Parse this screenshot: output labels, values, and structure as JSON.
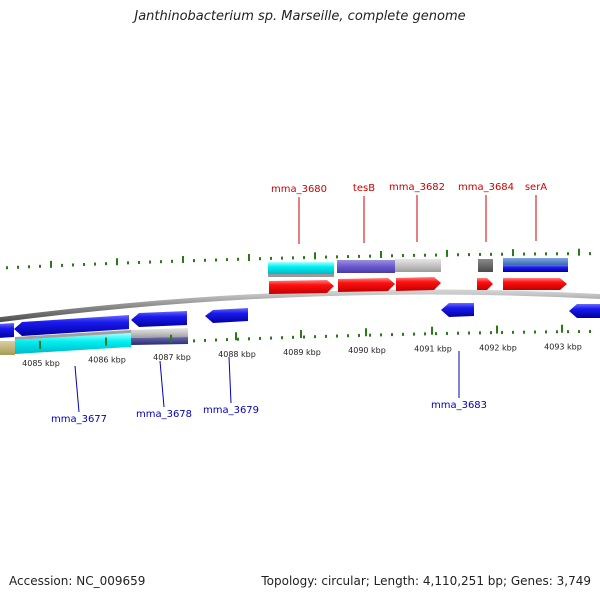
{
  "title": "Janthinobacterium sp. Marseille, complete genome",
  "footer": {
    "accession": "Accession: NC_009659",
    "summary": "Topology: circular; Length: 4,110,251 bp; Genes: 3,749"
  },
  "colors": {
    "forward_label": "#cc0000",
    "reverse_label": "#0000bb",
    "tick": "#2a7a1a",
    "backbone": "#8a8a8a"
  },
  "ticks": [
    {
      "label": "4085 kbp"
    },
    {
      "label": "4086 kbp"
    },
    {
      "label": "4087 kbp"
    },
    {
      "label": "4088 kbp"
    },
    {
      "label": "4089 kbp"
    },
    {
      "label": "4090 kbp"
    },
    {
      "label": "4091 kbp"
    },
    {
      "label": "4092 kbp"
    },
    {
      "label": "4093 kbp"
    }
  ],
  "forward_genes": [
    {
      "name": "mma_3680"
    },
    {
      "name": "tesB"
    },
    {
      "name": "mma_3682"
    },
    {
      "name": "mma_3684"
    },
    {
      "name": "serA"
    }
  ],
  "reverse_genes": [
    {
      "name": "mma_3677"
    },
    {
      "name": "mma_3678"
    },
    {
      "name": "mma_3679"
    },
    {
      "name": "mma_3683"
    }
  ]
}
